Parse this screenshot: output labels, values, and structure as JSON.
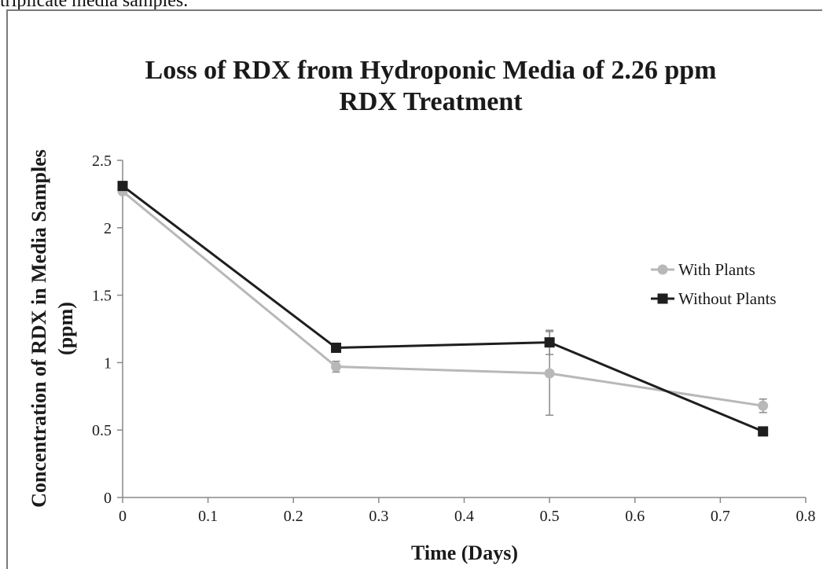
{
  "caption": "triplicate media samples.",
  "chart_data": {
    "type": "line",
    "title": "Loss of RDX from Hydroponic Media of 2.26 ppm RDX Treatment",
    "title_lines": [
      "Loss of RDX from Hydroponic Media of 2.26 ppm",
      "RDX Treatment"
    ],
    "xlabel": "Time (Days)",
    "ylabel": "Concentration of RDX in Media Samples (ppm)",
    "ylabel_lines": [
      "Concentration of RDX in Media Samples",
      "(ppm)"
    ],
    "xlim": [
      0,
      0.8
    ],
    "ylim": [
      0,
      2.5
    ],
    "xticks": [
      "0",
      "0.1",
      "0.2",
      "0.3",
      "0.4",
      "0.5",
      "0.6",
      "0.7",
      "0.8"
    ],
    "yticks": [
      "0",
      "0.5",
      "1",
      "1.5",
      "2",
      "2.5"
    ],
    "grid": false,
    "legend_position": "right",
    "series": [
      {
        "name": "With Plants",
        "color": "#b8b8b8",
        "marker": "circle",
        "x": [
          0,
          0.25,
          0.5,
          0.75
        ],
        "y": [
          2.27,
          0.97,
          0.92,
          0.68
        ],
        "error": [
          0.02,
          0.04,
          0.31,
          0.05
        ]
      },
      {
        "name": "Without Plants",
        "color": "#1e1e1e",
        "marker": "square",
        "x": [
          0,
          0.25,
          0.5,
          0.75
        ],
        "y": [
          2.31,
          1.11,
          1.15,
          0.49
        ],
        "error": [
          0.01,
          0.02,
          0.09,
          0.01
        ]
      }
    ]
  }
}
